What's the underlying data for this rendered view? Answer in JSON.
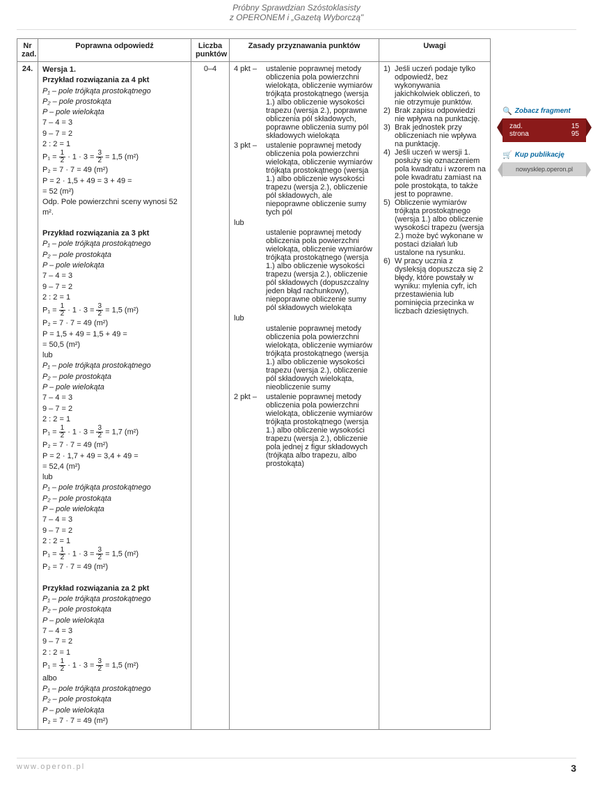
{
  "header": {
    "line1": "Próbny Sprawdzian Szóstoklasisty",
    "line2": "z OPERONEM i „Gazetą Wyborczą\""
  },
  "columns": {
    "nr": "Nr zad.",
    "odp": "Poprawna odpowiedź",
    "pkt": "Liczba punktów",
    "zas": "Zasady przyznawania punktów",
    "uw": "Uwagi"
  },
  "row": {
    "nr": "24.",
    "pkt": "0–4"
  },
  "ans": {
    "w1": "Wersja 1.",
    "h4": "Przykład rozwiązania za 4 pkt",
    "p1": "P₁ – pole trójkąta prostokątnego",
    "p2": "P₂ – pole prostokąta",
    "pw": "P – pole wielokąta",
    "c1": "7 – 4 = 3",
    "c2": "9 – 7 = 2",
    "c3": "2 : 2 = 1",
    "eq1a": "P₁ = ",
    "eq1b": " · 1 · 3 = ",
    "eq1c": " = 1,5  (m²)",
    "eq2": "P₂ = 7 · 7 = 49 (m²)",
    "eq3": "P = 2 · 1,5 + 49 = 3 + 49 =",
    "eq3b": "= 52 (m²)",
    "odp": "Odp. Pole powierzchni sceny wynosi 52 m².",
    "h3": "Przykład rozwiązania za 3 pkt",
    "eq4": "P = 1,5 + 49 = 1,5 + 49 =",
    "eq4b": "= 50,5 (m²)",
    "lub": "lub",
    "eq17": " = 1,7  (m²)",
    "eq5": "P = 2 · 1,7 + 49 = 3,4 + 49 =",
    "eq5b": "= 52,4 (m²)",
    "h2": "Przykład rozwiązania za 2 pkt",
    "albo": "albo",
    "frac12n": "1",
    "frac12d": "2",
    "frac32n": "3",
    "frac32d": "2"
  },
  "rules": {
    "l4": "4 pkt –",
    "l3": "3 pkt –",
    "l2": "2 pkt –",
    "lub": "lub",
    "t4": "ustalenie poprawnej metody obliczenia pola powierzchni wielokąta, obliczenie wymiarów trójkąta prostokątnego (wersja 1.) albo obliczenie wysokości trapezu (wersja 2.), poprawne obliczenia pól składowych, poprawne obliczenia sumy pól składowych wielokąta",
    "t3a": "ustalenie poprawnej metody obliczenia pola powierzchni wielokąta, obliczenie wymiarów trójkąta prostokątnego (wersja 1.) albo obliczenie wysokości trapezu (wersja 2.), obliczenie pól składowych, ale niepoprawne obliczenie sumy tych pól",
    "t3b": "ustalenie poprawnej metody obliczenia pola powierzchni wielokąta, obliczenie wymiarów trójkąta prostokątnego (wersja 1.) albo obliczenie wysokości trapezu (wersja 2.), obliczenie pól składowych (dopuszczalny jeden błąd rachunkowy), niepoprawne obliczenie sumy pól składowych wielokąta",
    "t3c": "ustalenie poprawnej metody obliczenia pola powierzchni wielokąta, obliczenie wymiarów trójkąta prostokątnego (wersja 1.) albo obliczenie wysokości trapezu (wersja 2.), obliczenie pól składowych wielokąta, nieobliczenie sumy",
    "t2": "ustalenie poprawnej metody obliczenia pola powierzchni wielokąta, obliczenie wymiarów trójkąta prostokątnego (wersja 1.) albo obliczenie wysokości trapezu (wersja 2.), obliczenie pola jednej z figur składowych (trójkąta albo trapezu, albo prostokąta)"
  },
  "notes": {
    "n1": "Jeśli uczeń podaje tylko odpowiedź, bez wykonywania jakichkolwiek obliczeń, to nie otrzymuje punktów.",
    "n2": "Brak zapisu odpowiedzi nie wpływa na punktację.",
    "n3": "Brak jednostek przy obliczeniach nie wpływa na punktację.",
    "n4": "Jeśli uczeń w wersji 1. posłuży się oznaczeniem pola kwadratu i wzorem na pole kwadratu zamiast na pole prostokąta, to także jest to poprawne.",
    "n5": "Obliczenie wymiarów trójkąta prostokątnego (wersja 1.) albo obliczenie wysokości trapezu (wersja 2.) może być wykonane w postaci działań lub ustalone na rysunku.",
    "n6": "W pracy ucznia z dysleksją dopuszcza się 2 błędy, które powstały w wyniku: mylenia cyfr, ich przestawienia lub pominięcia przecinka w liczbach dziesiętnych.",
    "l1": "1)",
    "l2": "2)",
    "l3": "3)",
    "l4": "4)",
    "l5": "5)",
    "l6": "6)"
  },
  "sidebar": {
    "frag": "Zobacz fragment",
    "zad": "zad.",
    "zadn": "15",
    "str": "strona",
    "strn": "95",
    "kup": "Kup publikację",
    "shop": "nowysklep.operon.pl"
  },
  "footer": {
    "url": "www.operon.pl",
    "page": "3"
  }
}
